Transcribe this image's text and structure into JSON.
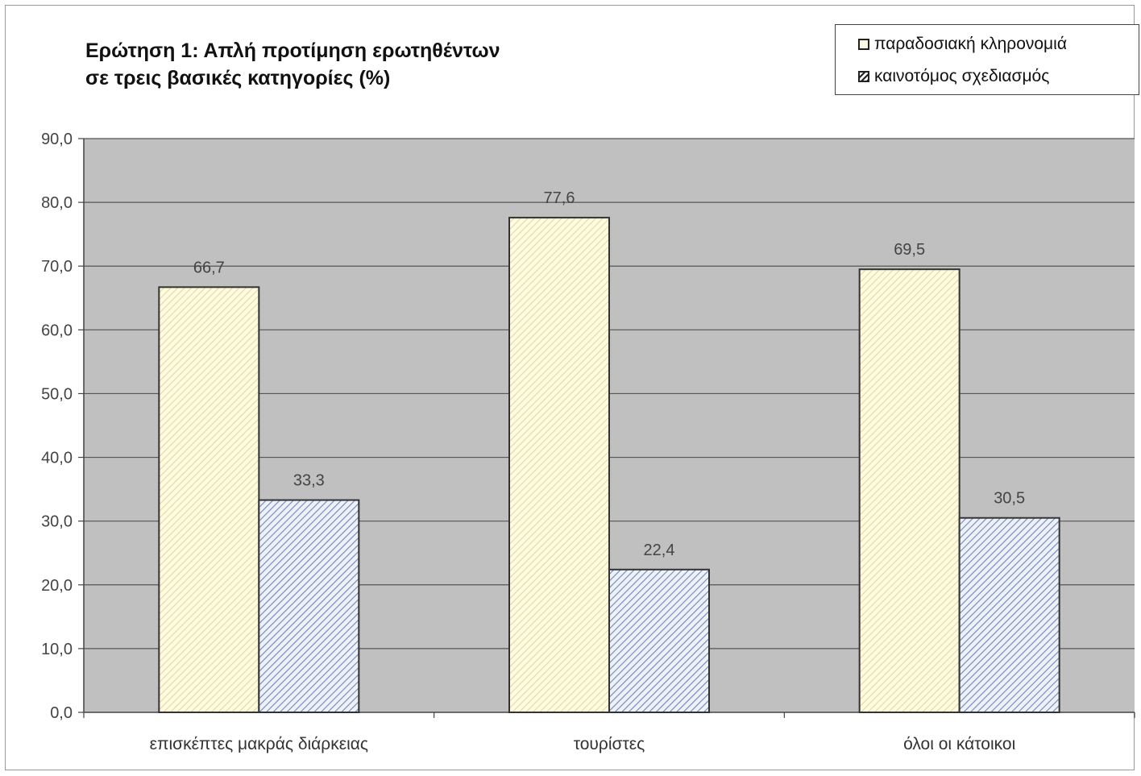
{
  "chart_data": {
    "type": "bar",
    "title": [
      "Ερώτηση 1: Απλή προτίμηση ερωτηθέντων",
      "σε τρεις βασικές κατηγορίες (%)"
    ],
    "categories": [
      "επισκέπτες μακράς διάρκειας",
      "τουρίστες",
      "όλοι οι κάτοικοι"
    ],
    "series": [
      {
        "name": "παραδοσιακή κληρονομιά",
        "values": [
          66.7,
          77.6,
          69.5
        ],
        "fill": "#fffbe0",
        "hatch": "#e6d9a8"
      },
      {
        "name": "καινοτόμος σχεδιασμός",
        "values": [
          33.3,
          22.4,
          30.5
        ],
        "fill": "#eef1f8",
        "hatch": "#6e86b8"
      }
    ],
    "data_labels": [
      [
        "66,7",
        "77,6",
        "69,5"
      ],
      [
        "33,3",
        "22,4",
        "30,5"
      ]
    ],
    "ylim": [
      0,
      90
    ],
    "yticks": [
      "0,0",
      "10,0",
      "20,0",
      "30,0",
      "40,0",
      "50,0",
      "60,0",
      "70,0",
      "80,0",
      "90,0"
    ],
    "grid": true,
    "plot_background": "#c0c0c0",
    "legend_position": "top-right"
  }
}
